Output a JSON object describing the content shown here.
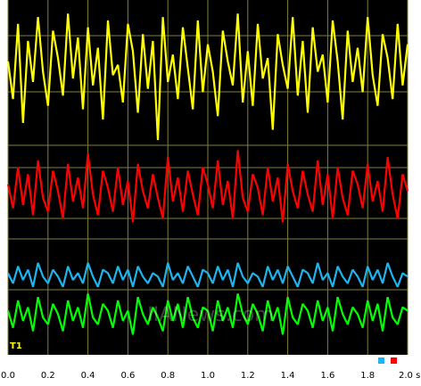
{
  "chart_data": {
    "type": "line",
    "watermark": "IIANews.com",
    "xlim": [
      0,
      2.0
    ],
    "ylim": [
      0,
      10
    ],
    "xticks": [
      {
        "value": 0,
        "label": "0.0"
      },
      0.2,
      0.4,
      0.6,
      0.8,
      {
        "value": 1,
        "label": "1.0"
      },
      1.2,
      1.4,
      1.6,
      1.8,
      {
        "value": 2,
        "label": "2.0 s"
      }
    ],
    "x": [
      0,
      0.025,
      0.05,
      0.075,
      0.1,
      0.125,
      0.15,
      0.175,
      0.2,
      0.225,
      0.25,
      0.275,
      0.3,
      0.325,
      0.35,
      0.375,
      0.4,
      0.425,
      0.45,
      0.475,
      0.5,
      0.525,
      0.55,
      0.575,
      0.6,
      0.625,
      0.65,
      0.675,
      0.7,
      0.725,
      0.75,
      0.775,
      0.8,
      0.825,
      0.85,
      0.875,
      0.9,
      0.925,
      0.95,
      0.975,
      1,
      1.025,
      1.05,
      1.075,
      1.1,
      1.125,
      1.15,
      1.175,
      1.2,
      1.225,
      1.25,
      1.275,
      1.3,
      1.325,
      1.35,
      1.375,
      1.4,
      1.425,
      1.45,
      1.475,
      1.5,
      1.525,
      1.55,
      1.575,
      1.6,
      1.625,
      1.65,
      1.675,
      1.7,
      1.725,
      1.75,
      1.775,
      1.8,
      1.825,
      1.85,
      1.875,
      1.9,
      1.925,
      1.95,
      1.975,
      2
    ],
    "series": [
      {
        "name": "T1",
        "color": "#ffff00",
        "values": [
          8.2,
          7.1,
          9.3,
          6.4,
          8.8,
          7.6,
          9.5,
          7.9,
          6.9,
          9.1,
          8.3,
          7.2,
          9.6,
          7.7,
          8.9,
          6.8,
          9.2,
          7.5,
          8.6,
          6.5,
          9.4,
          7.8,
          8.1,
          7.0,
          9.3,
          8.5,
          6.7,
          9.0,
          7.4,
          8.8,
          5.9,
          9.5,
          7.6,
          8.4,
          7.1,
          9.2,
          8.0,
          6.8,
          9.4,
          7.3,
          8.7,
          7.9,
          6.6,
          9.1,
          8.2,
          7.5,
          9.6,
          7.0,
          8.5,
          6.9,
          9.3,
          7.7,
          8.3,
          6.2,
          9.0,
          8.1,
          7.4,
          9.5,
          7.2,
          8.8,
          6.7,
          9.2,
          7.9,
          8.4,
          7.0,
          9.4,
          8.2,
          6.5,
          9.1,
          7.6,
          8.6,
          7.3,
          9.5,
          7.8,
          6.9,
          9.0,
          8.3,
          7.1,
          9.3,
          7.5,
          8.7
        ]
      },
      {
        "color": "#ff0000",
        "values": [
          4.6,
          3.9,
          5.1,
          4.0,
          4.9,
          3.7,
          5.3,
          4.2,
          3.8,
          5.0,
          4.4,
          3.6,
          5.2,
          4.1,
          4.8,
          3.9,
          5.5,
          4.3,
          3.7,
          5.0,
          4.5,
          3.8,
          5.1,
          4.0,
          4.7,
          3.5,
          5.2,
          4.4,
          3.9,
          4.9,
          4.2,
          3.6,
          5.4,
          4.1,
          4.8,
          3.8,
          5.0,
          4.3,
          3.7,
          5.1,
          4.6,
          3.9,
          5.3,
          4.0,
          4.7,
          3.6,
          5.6,
          4.2,
          3.8,
          4.9,
          4.5,
          3.7,
          5.1,
          4.1,
          4.8,
          3.5,
          5.2,
          4.4,
          3.9,
          5.0,
          4.3,
          3.8,
          5.3,
          4.0,
          4.9,
          3.6,
          5.1,
          4.2,
          3.7,
          5.0,
          4.6,
          3.9,
          5.2,
          4.1,
          4.7,
          3.8,
          5.4,
          4.3,
          3.6,
          4.9,
          4.4
        ]
      },
      {
        "color": "#1eb4f0",
        "values": [
          2.0,
          1.7,
          2.2,
          1.8,
          2.1,
          1.6,
          2.3,
          1.9,
          1.7,
          2.1,
          1.9,
          1.6,
          2.2,
          1.8,
          2.0,
          1.7,
          2.3,
          1.9,
          1.6,
          2.1,
          2.0,
          1.7,
          2.2,
          1.8,
          2.1,
          1.6,
          2.2,
          1.9,
          1.7,
          2.0,
          1.9,
          1.6,
          2.3,
          1.8,
          2.0,
          1.7,
          2.2,
          1.9,
          1.6,
          2.1,
          2.0,
          1.7,
          2.2,
          1.8,
          2.1,
          1.6,
          2.3,
          1.9,
          1.7,
          2.0,
          1.9,
          1.6,
          2.2,
          1.8,
          2.1,
          1.7,
          2.2,
          1.9,
          1.6,
          2.1,
          2.0,
          1.7,
          2.3,
          1.8,
          2.0,
          1.6,
          2.2,
          1.9,
          1.7,
          2.1,
          1.9,
          1.6,
          2.2,
          1.8,
          2.1,
          1.7,
          2.3,
          1.9,
          1.6,
          2.0,
          1.9
        ]
      },
      {
        "color": "#00ff00",
        "values": [
          0.9,
          0.4,
          1.2,
          0.6,
          1.0,
          0.3,
          1.3,
          0.7,
          0.5,
          1.1,
          0.8,
          0.3,
          1.2,
          0.6,
          1.0,
          0.4,
          1.4,
          0.7,
          0.5,
          1.1,
          0.9,
          0.4,
          1.2,
          0.6,
          0.9,
          0.2,
          1.3,
          0.8,
          0.5,
          1.0,
          0.7,
          0.3,
          1.2,
          0.6,
          1.1,
          0.4,
          1.3,
          0.7,
          0.4,
          1.0,
          0.9,
          0.3,
          1.2,
          0.6,
          1.0,
          0.4,
          1.4,
          0.8,
          0.5,
          1.1,
          0.8,
          0.3,
          1.2,
          0.6,
          1.0,
          0.2,
          1.3,
          0.7,
          0.5,
          1.1,
          0.9,
          0.4,
          1.2,
          0.6,
          1.0,
          0.3,
          1.3,
          0.8,
          0.5,
          1.0,
          0.8,
          0.4,
          1.2,
          0.6,
          1.1,
          0.3,
          1.3,
          0.7,
          0.5,
          1.0,
          0.9
        ]
      }
    ]
  }
}
